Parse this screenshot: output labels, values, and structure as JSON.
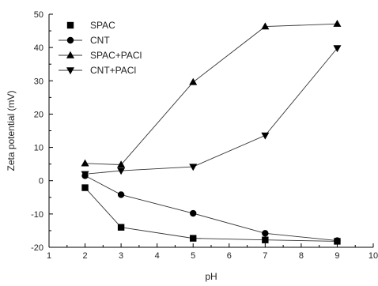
{
  "chart_data": {
    "type": "line",
    "xlabel": "pH",
    "ylabel": "Zeta potential (mV)",
    "xlim": [
      1,
      10
    ],
    "ylim": [
      -20,
      50
    ],
    "xticks": [
      1,
      2,
      3,
      4,
      5,
      6,
      7,
      8,
      9,
      10
    ],
    "yticks": [
      -20,
      -10,
      0,
      10,
      20,
      30,
      40,
      50
    ],
    "grid": false,
    "legend_position": "top-left",
    "series": [
      {
        "name": "SPAC",
        "marker": "square",
        "x": [
          2,
          3,
          5,
          7,
          9
        ],
        "y": [
          -2.1,
          -14,
          -17.3,
          -17.8,
          -18.2
        ]
      },
      {
        "name": "CNT",
        "marker": "circle",
        "x": [
          2,
          3,
          5,
          7,
          9
        ],
        "y": [
          1.5,
          -4.2,
          -9.8,
          -15.8,
          -18.0
        ]
      },
      {
        "name": "SPAC+PACl",
        "marker": "triangle-up",
        "x": [
          2,
          3,
          5,
          7,
          9
        ],
        "y": [
          5.2,
          4.8,
          29.6,
          46.3,
          47.1
        ]
      },
      {
        "name": "CNT+PACl",
        "marker": "triangle-down",
        "x": [
          2,
          3,
          5,
          7,
          9
        ],
        "y": [
          2.0,
          3.0,
          4.2,
          13.6,
          39.8
        ]
      }
    ]
  }
}
